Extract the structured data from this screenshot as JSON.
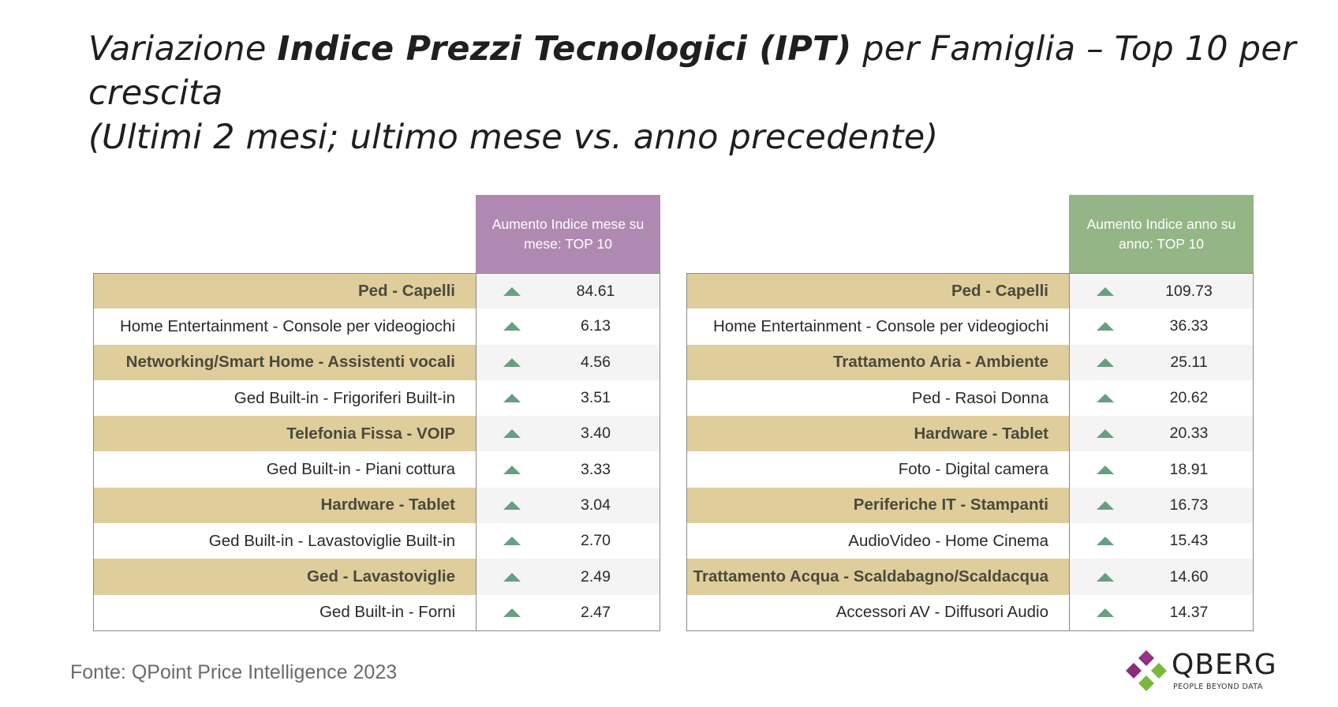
{
  "title": {
    "part1": "Variazione ",
    "bold": "Indice Prezzi Tecnologici (IPT)",
    "part2": " per Famiglia – Top 10 per crescita",
    "line3": "(Ultimi 2 mesi; ultimo mese vs. anno precedente)"
  },
  "colors": {
    "header_month": "#b089b2",
    "header_year": "#94b585",
    "row_shade": "#dfcd9c",
    "arrow": "#6a9e82"
  },
  "left_table": {
    "header": "Aumento Indice mese su mese: TOP 10",
    "rows": [
      {
        "label": "Ped - Capelli",
        "value": "84.61"
      },
      {
        "label": "Home Entertainment - Console per videogiochi",
        "value": "6.13"
      },
      {
        "label": "Networking/Smart Home - Assistenti vocali",
        "value": "4.56"
      },
      {
        "label": "Ged Built-in - Frigoriferi Built-in",
        "value": "3.51"
      },
      {
        "label": "Telefonia Fissa - VOIP",
        "value": "3.40"
      },
      {
        "label": "Ged Built-in - Piani cottura",
        "value": "3.33"
      },
      {
        "label": "Hardware - Tablet",
        "value": "3.04"
      },
      {
        "label": "Ged Built-in - Lavastoviglie Built-in",
        "value": "2.70"
      },
      {
        "label": "Ged - Lavastoviglie",
        "value": "2.49"
      },
      {
        "label": "Ged Built-in - Forni",
        "value": "2.47"
      }
    ]
  },
  "right_table": {
    "header": "Aumento Indice anno su anno: TOP 10",
    "rows": [
      {
        "label": "Ped - Capelli",
        "value": "109.73"
      },
      {
        "label": "Home Entertainment - Console per videogiochi",
        "value": "36.33"
      },
      {
        "label": "Trattamento Aria - Ambiente",
        "value": "25.11"
      },
      {
        "label": "Ped - Rasoi Donna",
        "value": "20.62"
      },
      {
        "label": "Hardware - Tablet",
        "value": "20.33"
      },
      {
        "label": "Foto - Digital camera",
        "value": "18.91"
      },
      {
        "label": "Periferiche IT - Stampanti",
        "value": "16.73"
      },
      {
        "label": "AudioVideo - Home Cinema",
        "value": "15.43"
      },
      {
        "label": "Trattamento Acqua - Scaldabagno/Scaldacqua",
        "value": "14.60"
      },
      {
        "label": "Accessori AV - Diffusori Audio",
        "value": "14.37"
      }
    ]
  },
  "source": "Fonte: QPoint Price Intelligence 2023",
  "logo": {
    "name": "QBERG",
    "tagline": "PEOPLE BEYOND DATA"
  }
}
